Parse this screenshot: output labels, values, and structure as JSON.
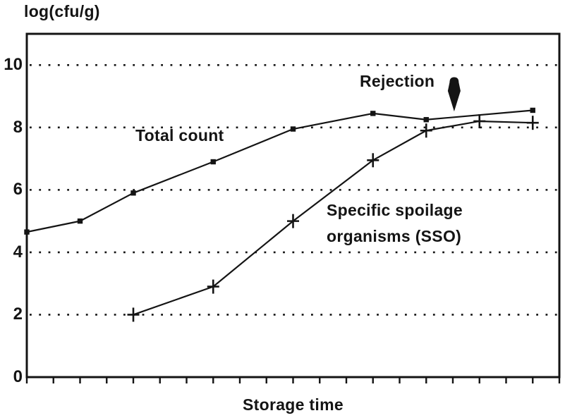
{
  "figure": {
    "background": "#ffffff",
    "ink_color": "#141414"
  },
  "labels": {
    "y_axis_title": "log(cfu/g)",
    "x_axis_title": "Storage time",
    "total_count": "Total count",
    "sso": "Specific spoilage\norganisms (SSO)",
    "rejection": "Rejection"
  },
  "chart_data": {
    "type": "line",
    "title": "",
    "xlabel": "Storage time",
    "ylabel": "log(cfu/g)",
    "xlim": [
      0,
      20
    ],
    "ylim": [
      0,
      11
    ],
    "x_tick_step": 1,
    "x_tick_labels_shown": false,
    "y_ticks": [
      0,
      2,
      4,
      6,
      8,
      10
    ],
    "grid": {
      "horizontal_dotted_at": [
        2,
        4,
        6,
        8,
        10
      ]
    },
    "legend_position": "none (inline labels on plot)",
    "series": [
      {
        "name": "Total count",
        "marker": "filled-square",
        "x": [
          0,
          2,
          4,
          7,
          10,
          13,
          15,
          19
        ],
        "y": [
          4.65,
          5.0,
          5.9,
          6.9,
          7.95,
          8.45,
          8.25,
          8.55
        ]
      },
      {
        "name": "Specific spoilage organisms (SSO)",
        "marker": "plus",
        "x": [
          4,
          7,
          10,
          13,
          15,
          17,
          19
        ],
        "y": [
          2.0,
          2.9,
          5.0,
          6.95,
          7.9,
          8.2,
          8.15
        ]
      }
    ],
    "annotations": [
      {
        "kind": "label",
        "text": "Rejection"
      },
      {
        "kind": "arrow-down",
        "x": 16.05,
        "from_y": 9.6,
        "to_y": 8.55
      }
    ]
  }
}
